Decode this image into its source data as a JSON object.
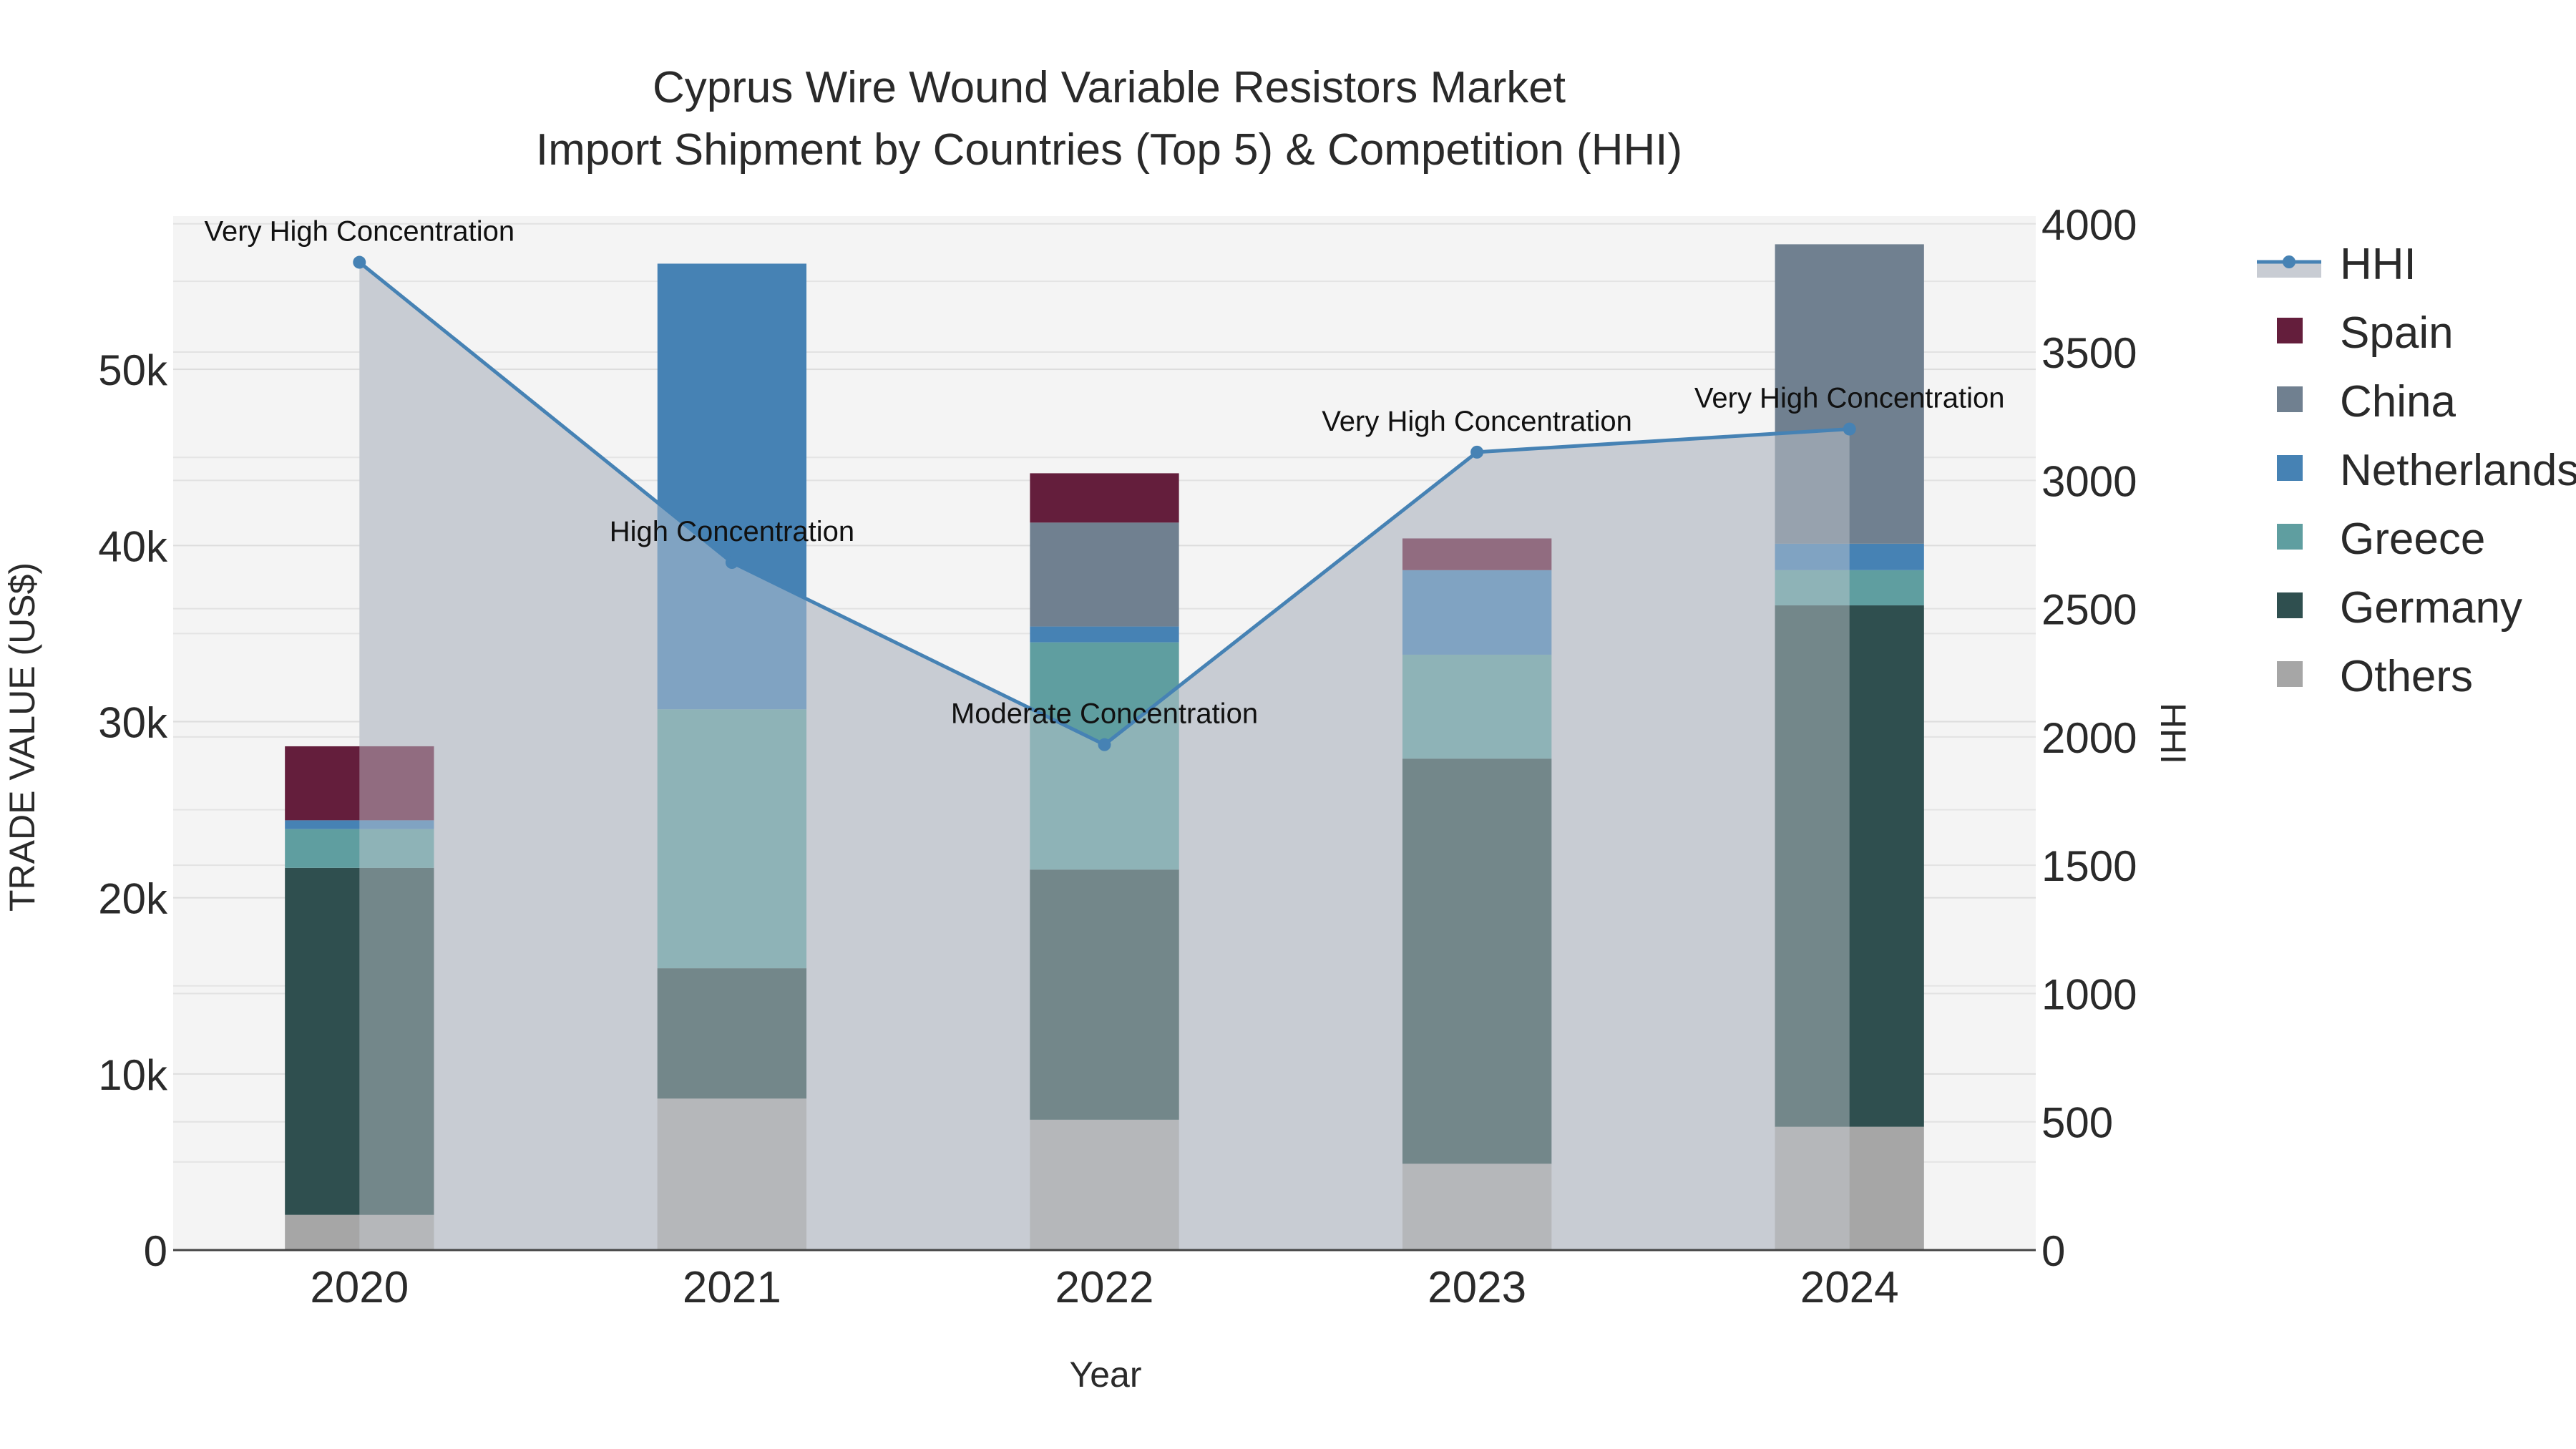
{
  "chart_data": {
    "type": "bar",
    "title_line1": "Cyprus Wire Wound Variable Resistors Market",
    "title_line2": "Import Shipment by Countries (Top 5) & Competition (HHI)",
    "xlabel": "Year",
    "ylabel": "TRADE VALUE (US$)",
    "y2label": "HHI",
    "categories": [
      "2020",
      "2021",
      "2022",
      "2023",
      "2024"
    ],
    "ylim": [
      0,
      58700
    ],
    "y2lim": [
      0,
      4030
    ],
    "yticks": [
      0,
      10000,
      20000,
      30000,
      40000,
      50000
    ],
    "ytick_labels": [
      "0",
      "10k",
      "20k",
      "30k",
      "40k",
      "50k"
    ],
    "y2ticks": [
      0,
      500,
      1000,
      1500,
      2000,
      2500,
      3000,
      3500,
      4000
    ],
    "y2tick_labels": [
      "0",
      "500",
      "1000",
      "1500",
      "2000",
      "2500",
      "3000",
      "3500",
      "4000"
    ],
    "series": [
      {
        "name": "Others",
        "color": "#a6a6a6",
        "values": [
          2000,
          8600,
          7400,
          4900,
          7000
        ]
      },
      {
        "name": "Germany",
        "color": "#2f4f4f",
        "values": [
          19700,
          7400,
          14200,
          23000,
          29600
        ]
      },
      {
        "name": "Greece",
        "color": "#5f9ea0",
        "values": [
          2200,
          14700,
          12900,
          5900,
          2000
        ]
      },
      {
        "name": "Netherlands",
        "color": "#4682b4",
        "values": [
          500,
          25300,
          900,
          4800,
          1500
        ]
      },
      {
        "name": "China",
        "color": "#708090",
        "values": [
          0,
          0,
          5900,
          0,
          17000
        ]
      },
      {
        "name": "Spain",
        "color": "#641e3c",
        "values": [
          4200,
          0,
          2800,
          1800,
          0
        ]
      }
    ],
    "hhi": {
      "name": "HHI",
      "color": "#4682b4",
      "values": [
        3850,
        2680,
        1970,
        3110,
        3200
      ],
      "labels": [
        "Very High Concentration",
        "High Concentration",
        "Moderate Concentration",
        "Very High Concentration",
        "Very High Concentration"
      ]
    },
    "legend": [
      "HHI",
      "Spain",
      "China",
      "Netherlands",
      "Greece",
      "Germany",
      "Others"
    ]
  }
}
